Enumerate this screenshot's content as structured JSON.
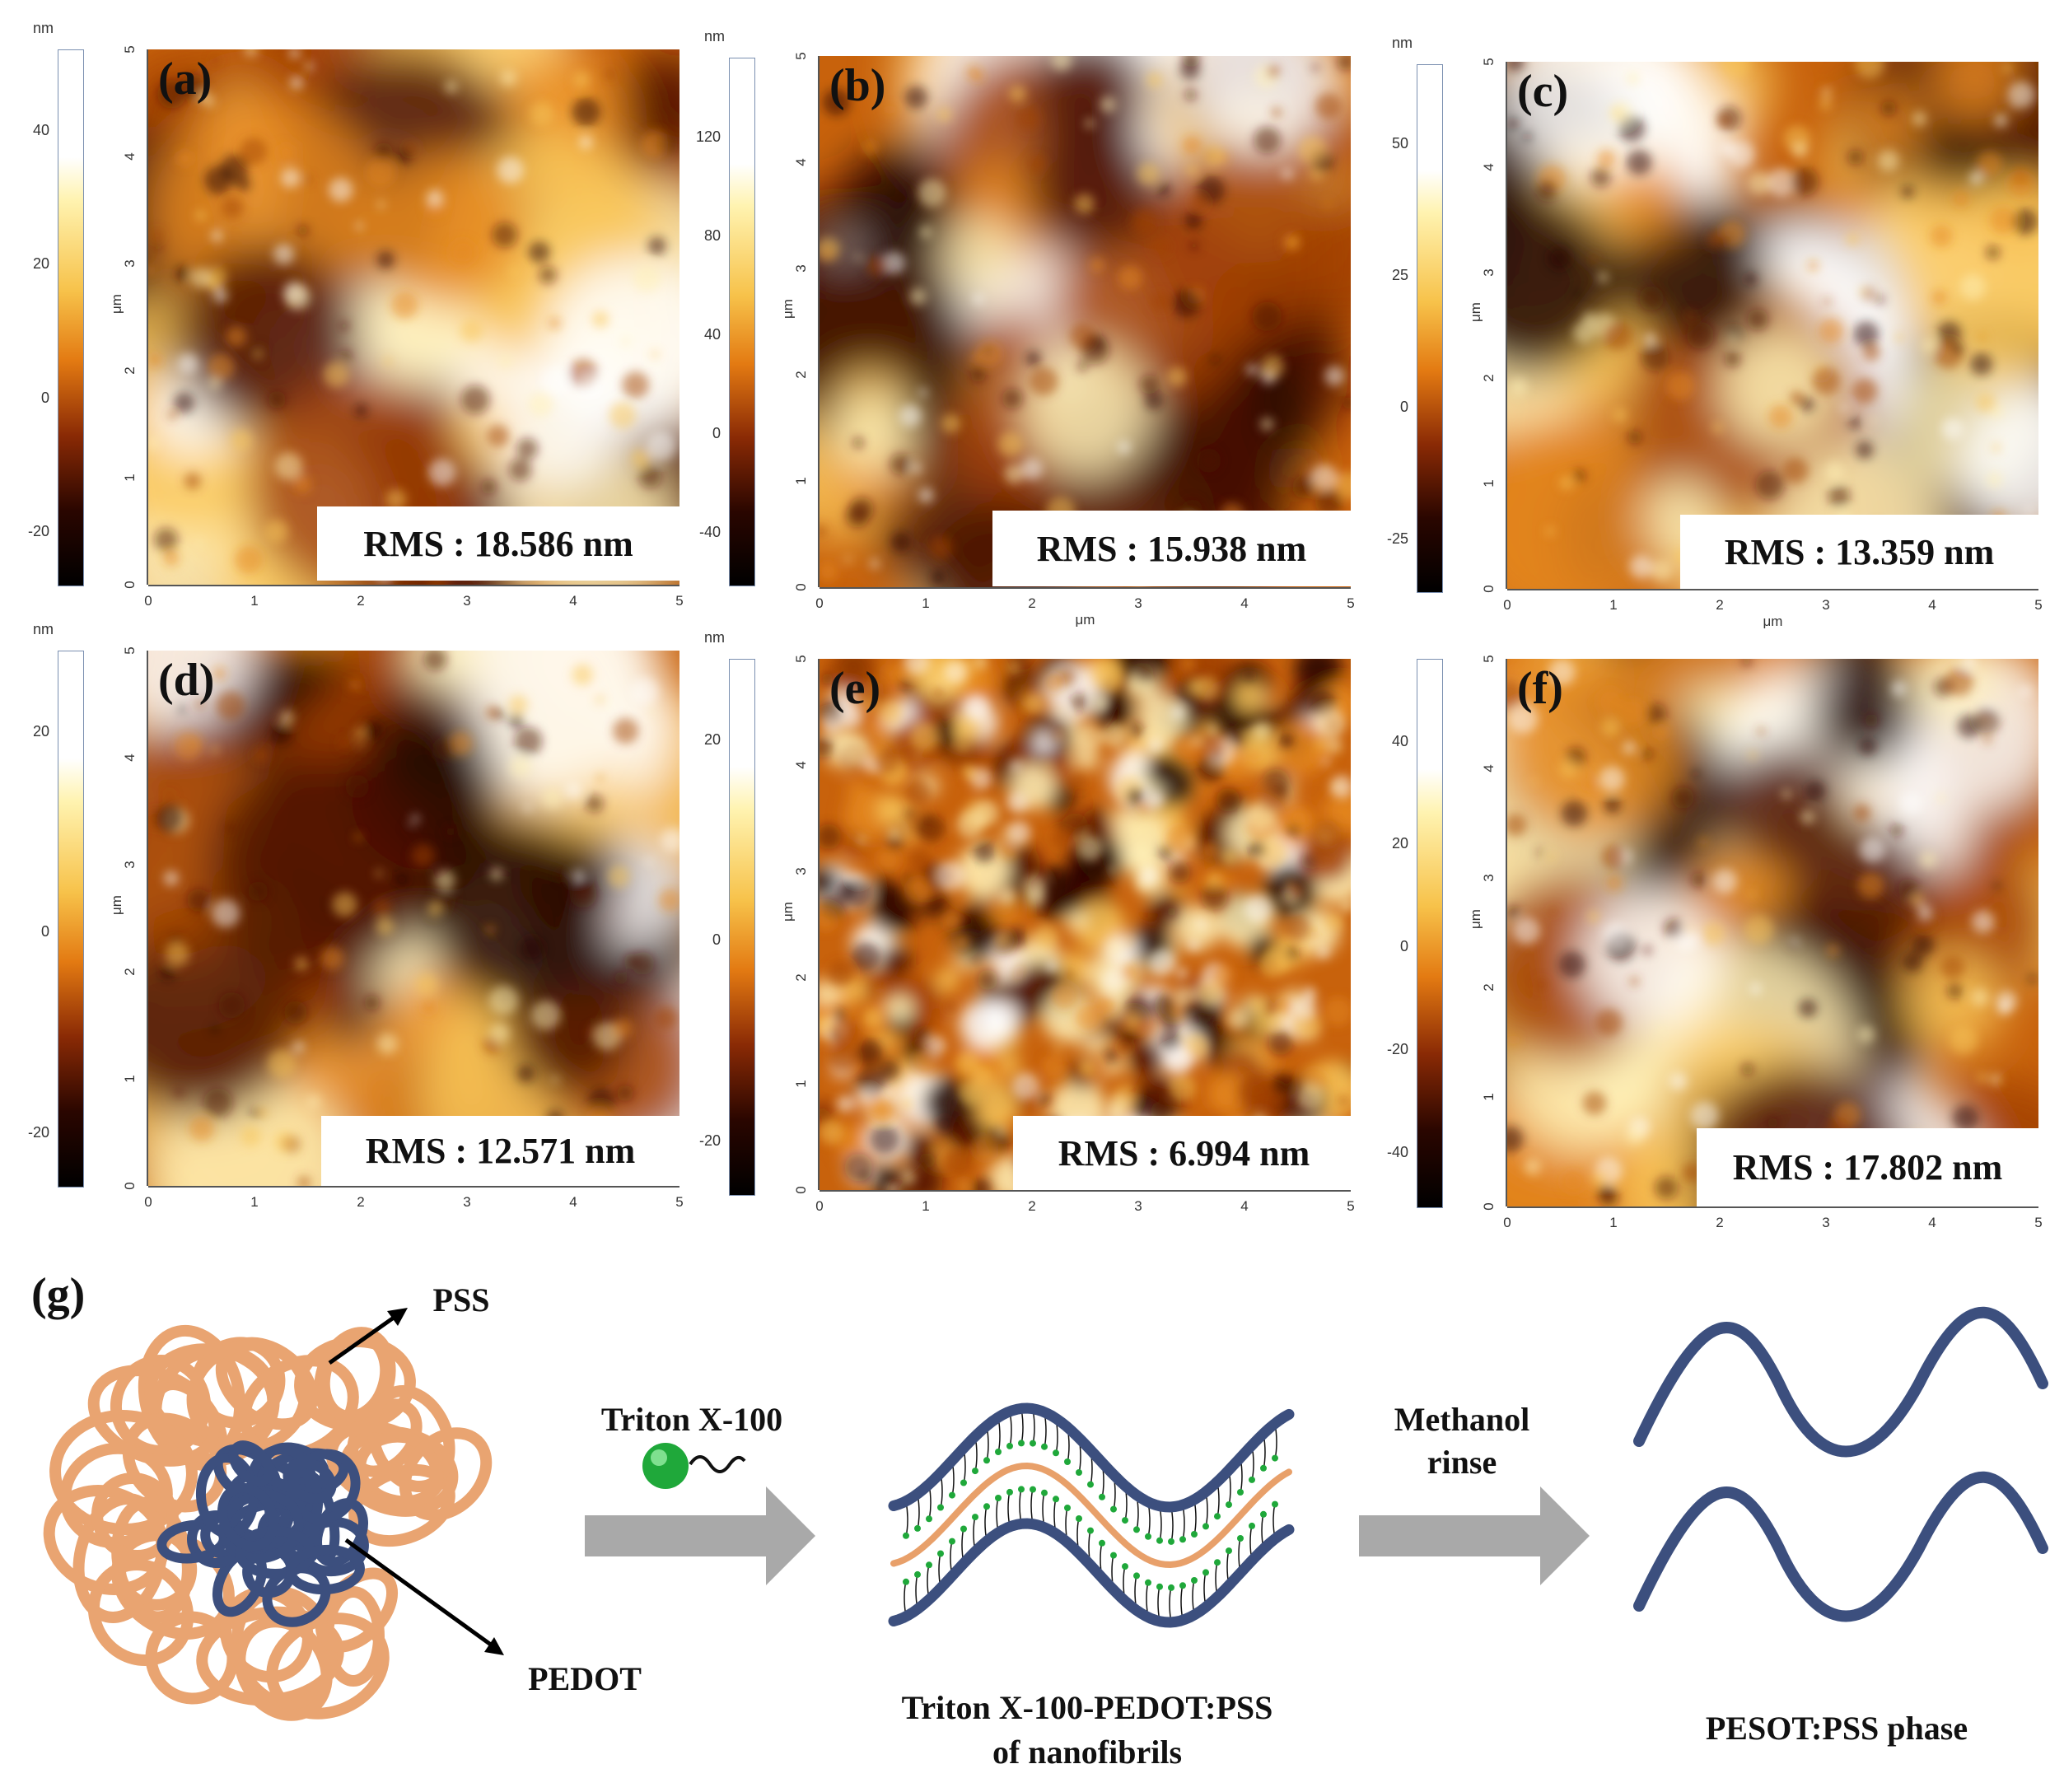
{
  "panels": [
    {
      "id": "a",
      "label": "(a)",
      "rms": "RMS : 18.586 nm",
      "cb_unit": "nm",
      "cb_ticks": [
        "40",
        "20",
        "0",
        "-20"
      ],
      "x_ticks": [
        "0",
        "1",
        "2",
        "3",
        "4",
        "5"
      ],
      "y_ticks": [
        "0",
        "1",
        "2",
        "3",
        "4",
        "5"
      ],
      "y_unit": "μm",
      "x_unit": ""
    },
    {
      "id": "b",
      "label": "(b)",
      "rms": "RMS : 15.938 nm",
      "cb_unit": "nm",
      "cb_ticks": [
        "120",
        "80",
        "40",
        "0",
        "-40"
      ],
      "x_ticks": [
        "0",
        "1",
        "2",
        "3",
        "4",
        "5"
      ],
      "y_ticks": [
        "0",
        "1",
        "2",
        "3",
        "4",
        "5"
      ],
      "y_unit": "μm",
      "x_unit": "μm"
    },
    {
      "id": "c",
      "label": "(c)",
      "rms": "RMS : 13.359 nm",
      "cb_unit": "nm",
      "cb_ticks": [
        "50",
        "25",
        "0",
        "-25"
      ],
      "x_ticks": [
        "0",
        "1",
        "2",
        "3",
        "4",
        "5"
      ],
      "y_ticks": [
        "0",
        "1",
        "2",
        "3",
        "4",
        "5"
      ],
      "y_unit": "μm",
      "x_unit": "μm"
    },
    {
      "id": "d",
      "label": "(d)",
      "rms": "RMS : 12.571 nm",
      "cb_unit": "nm",
      "cb_ticks": [
        "20",
        "0",
        "-20"
      ],
      "x_ticks": [
        "0",
        "1",
        "2",
        "3",
        "4",
        "5"
      ],
      "y_ticks": [
        "0",
        "1",
        "2",
        "3",
        "4",
        "5"
      ],
      "y_unit": "μm",
      "x_unit": ""
    },
    {
      "id": "e",
      "label": "(e)",
      "rms": "RMS : 6.994 nm",
      "cb_unit": "nm",
      "cb_ticks": [
        "20",
        "0",
        "-20"
      ],
      "x_ticks": [
        "0",
        "1",
        "2",
        "3",
        "4",
        "5"
      ],
      "y_ticks": [
        "0",
        "1",
        "2",
        "3",
        "4",
        "5"
      ],
      "y_unit": "μm",
      "x_unit": ""
    },
    {
      "id": "f",
      "label": "(f)",
      "rms": "RMS : 17.802 nm",
      "cb_unit": "",
      "cb_ticks": [
        "40",
        "20",
        "0",
        "-20",
        "-40"
      ],
      "x_ticks": [
        "0",
        "1",
        "2",
        "3",
        "4",
        "5"
      ],
      "y_ticks": [
        "0",
        "1",
        "2",
        "3",
        "4",
        "5"
      ],
      "y_unit": "μm",
      "x_unit": ""
    }
  ],
  "schematic": {
    "label": "(g)",
    "pss": "PSS",
    "pedot": "PEDOT",
    "step1": "Triton X-100",
    "step2_line1": "Methanol",
    "step2_line2": "rinse",
    "caption_mid_line1": "Triton X-100-PEDOT:PSS",
    "caption_mid_line2": "of nanofibrils",
    "caption_right": "PESOT:PSS phase",
    "colors": {
      "pss": "#e8a06a",
      "pedot": "#3c4f7e",
      "surfactant": "#1fa83a",
      "arrow": "#a9a9a9"
    }
  }
}
